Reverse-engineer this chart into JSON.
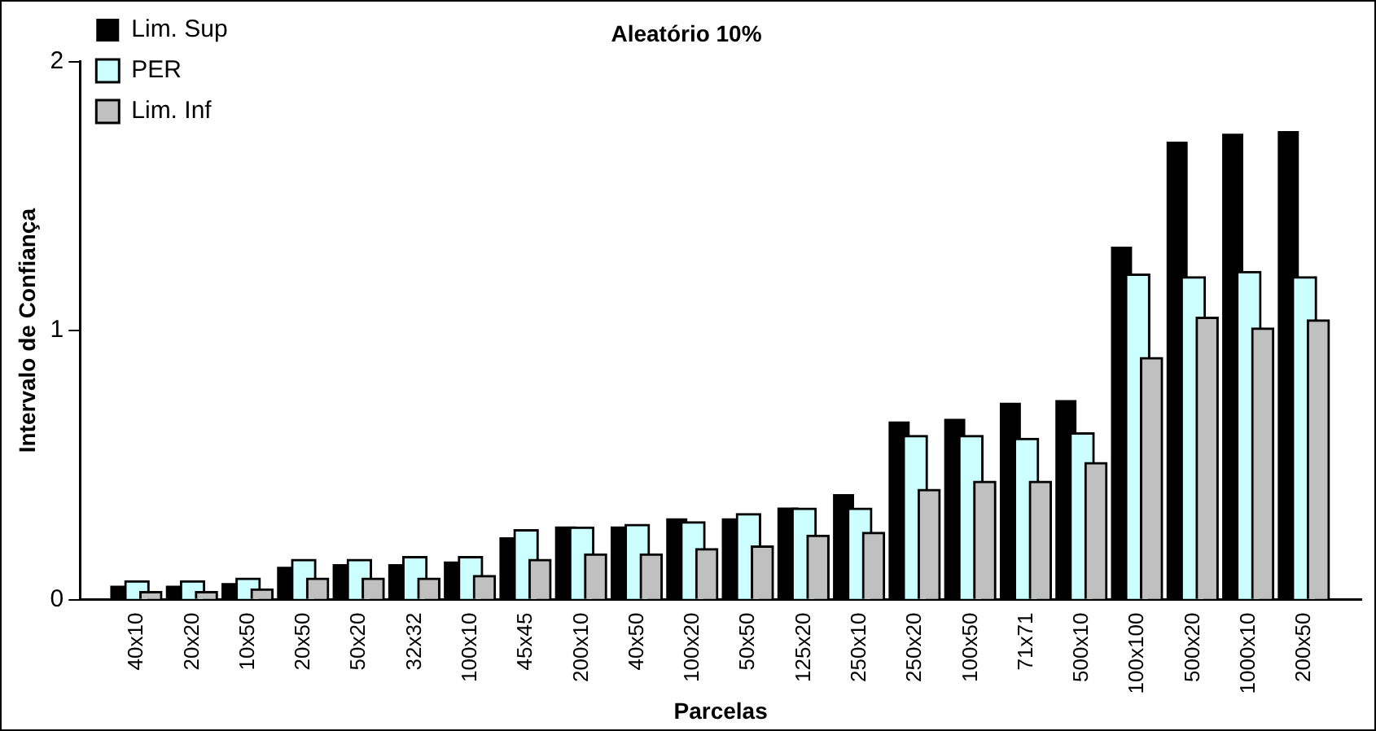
{
  "chart_data": {
    "type": "bar",
    "title": "Aleatório 10%",
    "xlabel": "Parcelas",
    "ylabel": "Intervalo de Confiança",
    "categories": [
      "40x10",
      "20x20",
      "10x50",
      "20x50",
      "50x20",
      "32x32",
      "100x10",
      "45x45",
      "200x10",
      "40x50",
      "100x20",
      "50x50",
      "125x20",
      "250x10",
      "250x20",
      "100x50",
      "71x71",
      "500x10",
      "100x100",
      "500x20",
      "1000x10",
      "200x50"
    ],
    "series": [
      {
        "name": "Lim. Sup",
        "color": "#000000",
        "values": [
          0.05,
          0.05,
          0.06,
          0.12,
          0.13,
          0.13,
          0.14,
          0.23,
          0.27,
          0.27,
          0.3,
          0.3,
          0.34,
          0.39,
          0.66,
          0.67,
          0.73,
          0.74,
          1.31,
          1.7,
          1.73,
          1.74
        ]
      },
      {
        "name": "PER",
        "color": "#ccffff",
        "values": [
          0.07,
          0.07,
          0.08,
          0.15,
          0.15,
          0.16,
          0.16,
          0.26,
          0.27,
          0.28,
          0.29,
          0.32,
          0.34,
          0.34,
          0.61,
          0.61,
          0.6,
          0.62,
          1.21,
          1.2,
          1.22,
          1.2
        ]
      },
      {
        "name": "Lim. Inf",
        "color": "#c0c0c0",
        "values": [
          0.03,
          0.03,
          0.04,
          0.08,
          0.08,
          0.08,
          0.09,
          0.15,
          0.17,
          0.17,
          0.19,
          0.2,
          0.24,
          0.25,
          0.41,
          0.44,
          0.44,
          0.51,
          0.9,
          1.05,
          1.01,
          1.04
        ]
      }
    ],
    "ylim": [
      0,
      2
    ],
    "yticks": [
      0,
      1,
      2
    ],
    "grid": false,
    "legend": "top left"
  }
}
